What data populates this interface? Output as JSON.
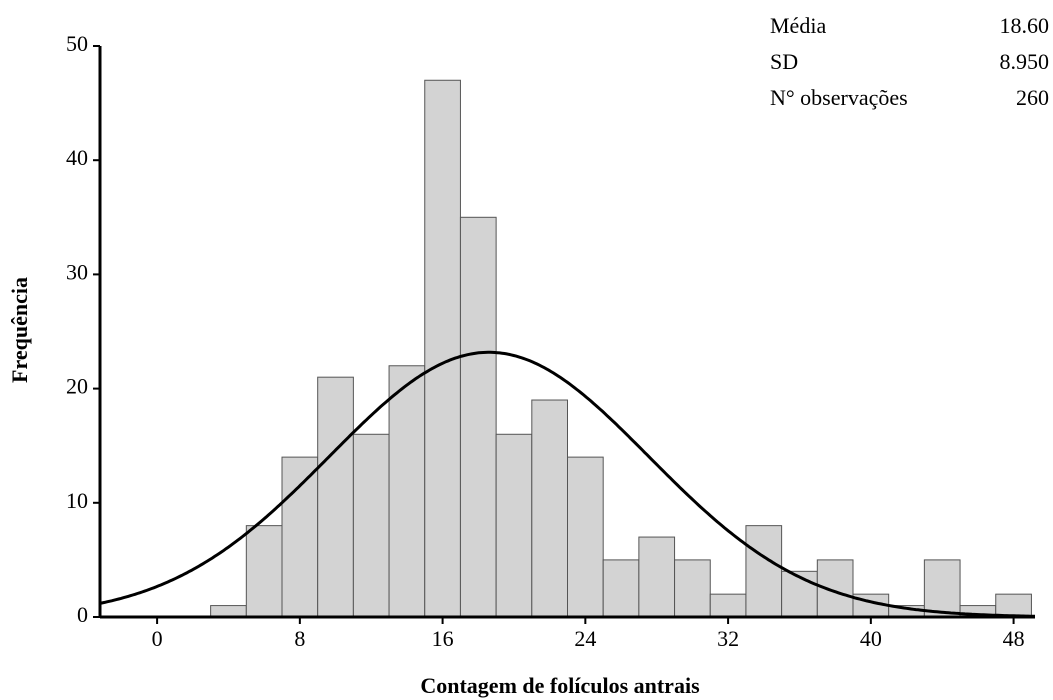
{
  "chart_data": {
    "type": "histogram",
    "x_label": "Contagem de folículos antrais",
    "y_label": "Frequência",
    "bins": [
      3,
      5,
      7,
      9,
      11,
      13,
      15,
      17,
      19,
      21,
      23,
      25,
      27,
      29,
      31,
      33,
      35,
      37,
      39,
      41,
      43,
      45,
      47,
      49
    ],
    "values": [
      1,
      8,
      14,
      21,
      16,
      22,
      47,
      35,
      16,
      19,
      14,
      5,
      7,
      5,
      2,
      8,
      4,
      5,
      2,
      1,
      5,
      1,
      2
    ],
    "color": "#d3d3d3",
    "xlim": [
      -3.2,
      49.2
    ],
    "xticks": [
      0,
      8,
      16,
      24,
      32,
      40,
      48
    ],
    "ylim": [
      0,
      50
    ],
    "yticks": [
      0,
      10,
      20,
      30,
      40,
      50
    ],
    "stats": [
      {
        "label": "Média",
        "value": "18.60"
      },
      {
        "label": "SD",
        "value": "8.950"
      },
      {
        "label": "N° observações",
        "value": "260"
      }
    ]
  }
}
